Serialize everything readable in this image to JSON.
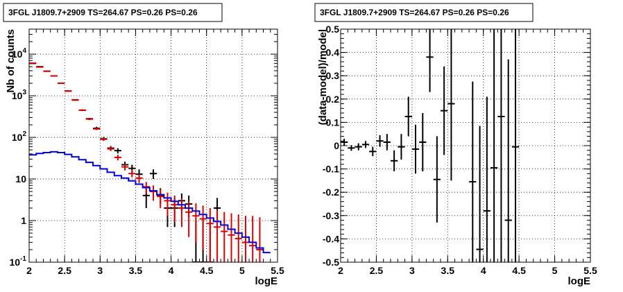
{
  "chart_data": [
    {
      "type": "scatter",
      "title": "3FGL J1809.7+2909 TS=264.67 PS=0.26 PS=0.26",
      "xlabel": "logE",
      "ylabel": "Nb of counts",
      "xlim": [
        2,
        5.5
      ],
      "ylim": [
        0.1,
        40000
      ],
      "ylog": true,
      "grid": true,
      "xticks": [
        "2",
        "2.5",
        "3",
        "3.5",
        "4",
        "4.5",
        "5",
        "5.5"
      ],
      "yticks": [
        {
          "value": 0.1,
          "label": "10",
          "exp": "-1"
        },
        {
          "value": 1,
          "label": "1",
          "exp": ""
        },
        {
          "value": 10,
          "label": "10",
          "exp": ""
        },
        {
          "value": 100,
          "label": "10",
          "exp": "2"
        },
        {
          "value": 1000,
          "label": "10",
          "exp": "3"
        },
        {
          "value": 10000,
          "label": "10",
          "exp": "4"
        }
      ],
      "series": [
        {
          "color": "#000000",
          "points": [
            [
              2.05,
              6000,
              5900,
              6100
            ],
            [
              2.15,
              5000,
              4900,
              5100
            ],
            [
              2.25,
              3900,
              3800,
              4000
            ],
            [
              2.35,
              3000,
              2900,
              3100
            ],
            [
              2.45,
              2000,
              1950,
              2050
            ],
            [
              2.55,
              1300,
              1250,
              1350
            ],
            [
              2.65,
              790,
              760,
              820
            ],
            [
              2.75,
              450,
              430,
              470
            ],
            [
              2.85,
              280,
              265,
              295
            ],
            [
              2.95,
              165,
              150,
              180
            ],
            [
              3.05,
              92,
              83,
              102
            ],
            [
              3.15,
              55,
              48,
              62
            ],
            [
              3.25,
              48,
              41,
              55
            ],
            [
              3.35,
              22,
              18,
              26
            ],
            [
              3.45,
              18,
              14,
              22
            ],
            [
              3.55,
              13,
              10,
              17
            ],
            [
              3.65,
              4,
              2,
              6.5
            ],
            [
              3.75,
              13.5,
              10,
              17
            ],
            [
              3.85,
              4,
              2.5,
              6
            ],
            [
              3.95,
              2,
              0.7,
              3.5
            ],
            [
              4.05,
              2,
              0.7,
              3.5
            ],
            [
              4.15,
              3,
              1.5,
              4.5
            ],
            [
              4.25,
              2.5,
              1.2,
              4
            ],
            [
              4.35,
              0.1,
              0.1,
              1.1
            ],
            [
              4.45,
              0.1,
              0.1,
              1.1
            ],
            [
              4.55,
              0.1,
              0.1,
              1.1
            ],
            [
              4.65,
              2,
              0.7,
              3.5
            ]
          ]
        },
        {
          "color": "#dd0000",
          "points": [
            [
              2.05,
              6100,
              6000,
              6200
            ],
            [
              2.15,
              4900,
              4800,
              5000
            ],
            [
              2.25,
              3900,
              3800,
              4000
            ],
            [
              2.35,
              3000,
              2900,
              3100
            ],
            [
              2.45,
              2000,
              1950,
              2050
            ],
            [
              2.55,
              1300,
              1250,
              1350
            ],
            [
              2.65,
              800,
              770,
              830
            ],
            [
              2.75,
              450,
              430,
              470
            ],
            [
              2.85,
              275,
              260,
              290
            ],
            [
              2.95,
              160,
              150,
              172
            ],
            [
              3.05,
              90,
              82,
              98
            ],
            [
              3.15,
              53,
              47,
              60
            ],
            [
              3.25,
              33,
              28,
              38
            ],
            [
              3.35,
              19.5,
              16,
              23
            ],
            [
              3.45,
              13.5,
              11,
              16.5
            ],
            [
              3.55,
              10.5,
              8,
              13
            ],
            [
              3.65,
              6.5,
              4.5,
              8.5
            ],
            [
              3.75,
              5,
              3,
              7
            ],
            [
              3.85,
              3.8,
              2,
              5.6
            ],
            [
              3.95,
              3,
              1.3,
              4.7
            ],
            [
              4.05,
              2.4,
              0.9,
              4
            ],
            [
              4.15,
              2,
              0.7,
              3.5
            ],
            [
              4.25,
              1.6,
              0.4,
              2.9
            ],
            [
              4.35,
              1.3,
              0.3,
              2.6
            ],
            [
              4.45,
              1.1,
              0.2,
              2.3
            ],
            [
              4.55,
              0.85,
              0.1,
              2
            ],
            [
              4.65,
              0.7,
              0.1,
              1.8
            ],
            [
              4.75,
              0.55,
              0.1,
              1.6
            ],
            [
              4.85,
              0.45,
              0.1,
              1.5
            ],
            [
              4.95,
              0.37,
              0.1,
              1.4
            ],
            [
              5.05,
              0.3,
              0.1,
              1.3
            ],
            [
              5.15,
              0.25,
              0.1,
              1.3
            ],
            [
              5.25,
              0.2,
              0.1,
              1.2
            ]
          ]
        },
        {
          "color": "#0000dd",
          "step": true,
          "edges": [
            2.0,
            2.1,
            2.2,
            2.3,
            2.4,
            2.5,
            2.6,
            2.7,
            2.8,
            2.9,
            3.0,
            3.1,
            3.2,
            3.3,
            3.4,
            3.5,
            3.6,
            3.7,
            3.8,
            3.9,
            4.0,
            4.1,
            4.2,
            4.3,
            4.4,
            4.5,
            4.6,
            4.7,
            4.8,
            4.9,
            5.0,
            5.1,
            5.2,
            5.3,
            5.4
          ],
          "values": [
            38,
            41,
            43,
            45,
            43,
            39,
            34,
            29,
            25,
            21,
            17.5,
            14.5,
            12,
            10.5,
            9,
            7.5,
            6.2,
            5.2,
            4.2,
            3.5,
            2.9,
            2.4,
            2.0,
            1.7,
            1.4,
            1.15,
            0.95,
            0.78,
            0.62,
            0.5,
            0.4,
            0.3,
            0.22,
            0.17
          ]
        }
      ]
    },
    {
      "type": "scatter",
      "title": "3FGL J1809.7+2909 TS=264.67 PS=0.26 PS=0.26",
      "xlabel": "logE",
      "ylabel": "(data-model)/model",
      "xlim": [
        2,
        5.5
      ],
      "ylim": [
        -0.5,
        0.5
      ],
      "grid": true,
      "xticks": [
        "2",
        "2.5",
        "3",
        "3.5",
        "4",
        "4.5",
        "5",
        "5.5"
      ],
      "yticks": [
        "-0.5",
        "-0.4",
        "-0.3",
        "-0.2",
        "-0.1",
        "0",
        "0.1",
        "0.2",
        "0.3",
        "0.4",
        "0.5"
      ],
      "series": [
        {
          "color": "#000000",
          "points": [
            [
              2.05,
              0.015,
              0.0,
              0.03
            ],
            [
              2.15,
              -0.01,
              -0.022,
              0.002
            ],
            [
              2.25,
              -0.005,
              -0.02,
              0.01
            ],
            [
              2.35,
              0.005,
              -0.01,
              0.02
            ],
            [
              2.45,
              -0.025,
              -0.045,
              -0.005
            ],
            [
              2.55,
              0.02,
              -0.005,
              0.045
            ],
            [
              2.65,
              0.015,
              -0.02,
              0.05
            ],
            [
              2.75,
              -0.065,
              -0.11,
              -0.02
            ],
            [
              2.85,
              -0.005,
              -0.06,
              0.05
            ],
            [
              2.95,
              0.125,
              0.04,
              0.21
            ],
            [
              3.05,
              -0.015,
              -0.12,
              0.09
            ],
            [
              3.15,
              0.015,
              -0.11,
              0.14
            ],
            [
              3.25,
              0.38,
              0.23,
              0.5
            ],
            [
              3.35,
              -0.145,
              -0.33,
              0.04
            ],
            [
              3.45,
              0.15,
              -0.04,
              0.34
            ],
            [
              3.55,
              0.18,
              -0.15,
              0.5
            ],
            [
              3.85,
              -0.155,
              -0.5,
              0.275
            ],
            [
              3.95,
              -0.445,
              -0.5,
              0.085
            ],
            [
              4.05,
              -0.28,
              -0.5,
              0.21
            ],
            [
              4.15,
              -0.095,
              -0.5,
              0.5
            ],
            [
              4.25,
              0.125,
              -0.5,
              0.5
            ],
            [
              4.35,
              -0.32,
              -0.5,
              0.37
            ],
            [
              4.45,
              -0.005,
              -0.5,
              0.5
            ]
          ]
        }
      ]
    }
  ]
}
